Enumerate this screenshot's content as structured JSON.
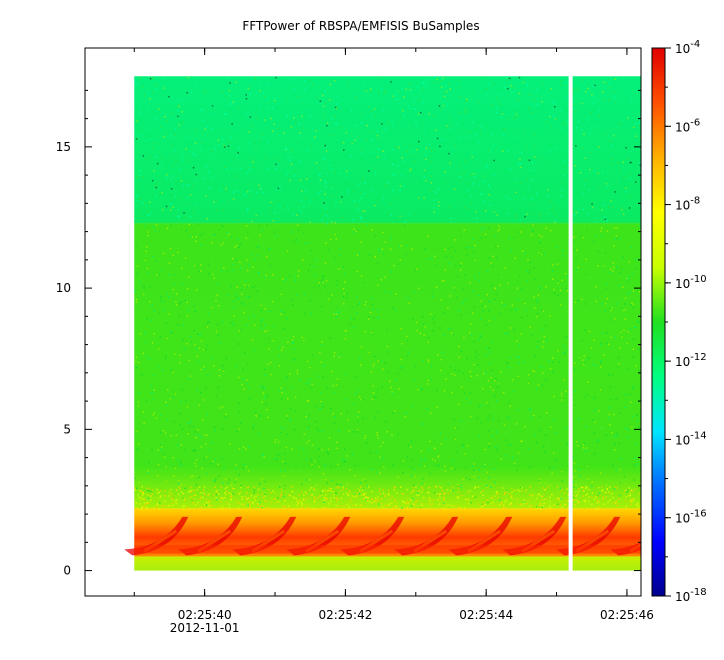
{
  "chart_data": {
    "type": "heatmap",
    "title": "FFTPower of RBSPA/EMFISIS  BuSamples",
    "xlabel": "",
    "ylabel": "",
    "x_ticks": [
      {
        "label": "02:25:40",
        "sublabel": "2012-11-01",
        "value": "02:25:40"
      },
      {
        "label": "02:25:42",
        "sublabel": "",
        "value": "02:25:42"
      },
      {
        "label": "02:25:44",
        "sublabel": "",
        "value": "02:25:44"
      },
      {
        "label": "02:25:46",
        "sublabel": "",
        "value": "02:25:46"
      }
    ],
    "x_range": [
      "02:25:38.3",
      "02:25:46.2"
    ],
    "y_ticks": [
      0,
      5,
      10,
      15
    ],
    "ylim": [
      -0.9,
      18.5
    ],
    "data_extent": {
      "x_start": "02:25:39.0",
      "x_end": "02:25:46.2",
      "y_start": 0,
      "y_end": 17.5
    },
    "gap_time": "02:25:45.2",
    "colorbar": {
      "scale": "log",
      "range": [
        1e-18,
        0.0001
      ],
      "tick_labels": [
        {
          "base": "10",
          "exp": "-4"
        },
        {
          "base": "10",
          "exp": "-6"
        },
        {
          "base": "10",
          "exp": "-8"
        },
        {
          "base": "10",
          "exp": "-10"
        },
        {
          "base": "10",
          "exp": "-12"
        },
        {
          "base": "10",
          "exp": "-14"
        },
        {
          "base": "10",
          "exp": "-16"
        },
        {
          "base": "10",
          "exp": "-18"
        }
      ],
      "colors": [
        "#00008c",
        "#0000ff",
        "#0080ff",
        "#00e5ff",
        "#00ff80",
        "#20e020",
        "#c8ff00",
        "#ffff00",
        "#ffb000",
        "#ff5000",
        "#e00000"
      ]
    },
    "bands": [
      {
        "y_from": 0,
        "y_to": 0.5,
        "log_power": -9.0
      },
      {
        "y_from": 0.5,
        "y_to": 2.2,
        "log_power": -5.5
      },
      {
        "y_from": 2.2,
        "y_to": 12.3,
        "log_power": -10.5
      },
      {
        "y_from": 12.3,
        "y_to": 17.5,
        "log_power": -11.5
      }
    ]
  }
}
